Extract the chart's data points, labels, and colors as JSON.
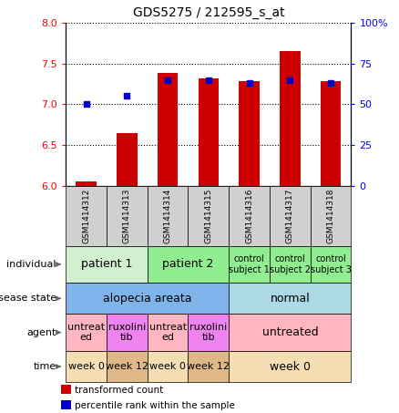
{
  "title": "GDS5275 / 212595_s_at",
  "samples": [
    "GSM1414312",
    "GSM1414313",
    "GSM1414314",
    "GSM1414315",
    "GSM1414316",
    "GSM1414317",
    "GSM1414318"
  ],
  "transformed_count": [
    6.05,
    6.65,
    7.38,
    7.32,
    7.28,
    7.65,
    7.28
  ],
  "percentile_rank": [
    50,
    55,
    65,
    65,
    63,
    65,
    63
  ],
  "ylim_left": [
    6.0,
    8.0
  ],
  "ylim_right": [
    0,
    100
  ],
  "yticks_left": [
    6.0,
    6.5,
    7.0,
    7.5,
    8.0
  ],
  "yticks_right": [
    0,
    25,
    50,
    75,
    100
  ],
  "bar_color": "#cc0000",
  "dot_color": "#0000cc",
  "sample_box_color": "#d0d0d0",
  "annotation_rows": [
    {
      "label": "individual",
      "cells": [
        {
          "text": "patient 1",
          "span": 2,
          "color": "#d0f0d0",
          "fontsize": 9
        },
        {
          "text": "patient 2",
          "span": 2,
          "color": "#90EE90",
          "fontsize": 9
        },
        {
          "text": "control\nsubject 1",
          "span": 1,
          "color": "#90EE90",
          "fontsize": 7
        },
        {
          "text": "control\nsubject 2",
          "span": 1,
          "color": "#90EE90",
          "fontsize": 7
        },
        {
          "text": "control\nsubject 3",
          "span": 1,
          "color": "#90EE90",
          "fontsize": 7
        }
      ]
    },
    {
      "label": "disease state",
      "cells": [
        {
          "text": "alopecia areata",
          "span": 4,
          "color": "#7EB4EA",
          "fontsize": 9
        },
        {
          "text": "normal",
          "span": 3,
          "color": "#ADD8E6",
          "fontsize": 9
        }
      ]
    },
    {
      "label": "agent",
      "cells": [
        {
          "text": "untreat\ned",
          "span": 1,
          "color": "#FFB6C1",
          "fontsize": 8
        },
        {
          "text": "ruxolini\ntib",
          "span": 1,
          "color": "#EE82EE",
          "fontsize": 8
        },
        {
          "text": "untreat\ned",
          "span": 1,
          "color": "#FFB6C1",
          "fontsize": 8
        },
        {
          "text": "ruxolini\ntib",
          "span": 1,
          "color": "#EE82EE",
          "fontsize": 8
        },
        {
          "text": "untreated",
          "span": 3,
          "color": "#FFB6C1",
          "fontsize": 9
        }
      ]
    },
    {
      "label": "time",
      "cells": [
        {
          "text": "week 0",
          "span": 1,
          "color": "#F5DEB3",
          "fontsize": 8
        },
        {
          "text": "week 12",
          "span": 1,
          "color": "#DEB887",
          "fontsize": 8
        },
        {
          "text": "week 0",
          "span": 1,
          "color": "#F5DEB3",
          "fontsize": 8
        },
        {
          "text": "week 12",
          "span": 1,
          "color": "#DEB887",
          "fontsize": 8
        },
        {
          "text": "week 0",
          "span": 3,
          "color": "#F5DEB3",
          "fontsize": 9
        }
      ]
    }
  ],
  "legend_items": [
    {
      "color": "#cc0000",
      "label": "transformed count"
    },
    {
      "color": "#0000cc",
      "label": "percentile rank within the sample"
    }
  ]
}
